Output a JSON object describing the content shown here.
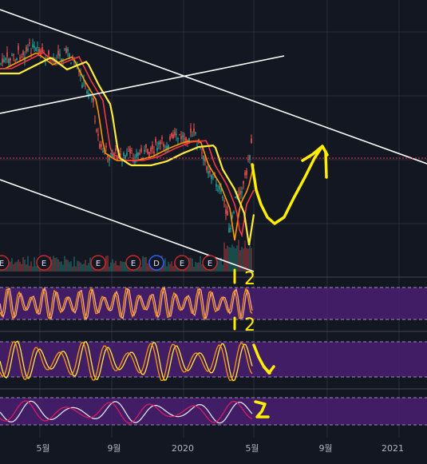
{
  "chart_data": {
    "type": "candlestick",
    "x_tick_labels": [
      "5월",
      "9월",
      "2020",
      "5월",
      "9월",
      "2021"
    ],
    "events": [
      {
        "label": "E",
        "kind": "earnings"
      },
      {
        "label": "E",
        "kind": "earnings"
      },
      {
        "label": "E",
        "kind": "earnings"
      },
      {
        "label": "E",
        "kind": "earnings"
      },
      {
        "label": "D",
        "kind": "dividend"
      },
      {
        "label": "E",
        "kind": "earnings"
      },
      {
        "label": "E",
        "kind": "earnings"
      }
    ],
    "moving_averages": [
      {
        "color": "#ff9800"
      },
      {
        "color": "#f23645"
      },
      {
        "color": "#ffeb3b"
      }
    ],
    "sub_panels": [
      {
        "kind": "oscillator",
        "line_colors": [
          "#f7a8a0",
          "#ff9800"
        ]
      },
      {
        "kind": "oscillator",
        "line_colors": [
          "#ffeb3b",
          "#ff9800"
        ]
      },
      {
        "kind": "oscillator",
        "line_colors": [
          "#e0e3eb",
          "#d81b60"
        ]
      }
    ],
    "annotations": [
      {
        "text": "1 2"
      },
      {
        "text": "1 2"
      }
    ],
    "colors": {
      "up": "#26a69a",
      "down": "#ef5350",
      "background": "#131722",
      "panel_fill": "#4a1f72",
      "drawing": "#ffffff",
      "handwriting": "#ffee00"
    },
    "grid": true
  }
}
